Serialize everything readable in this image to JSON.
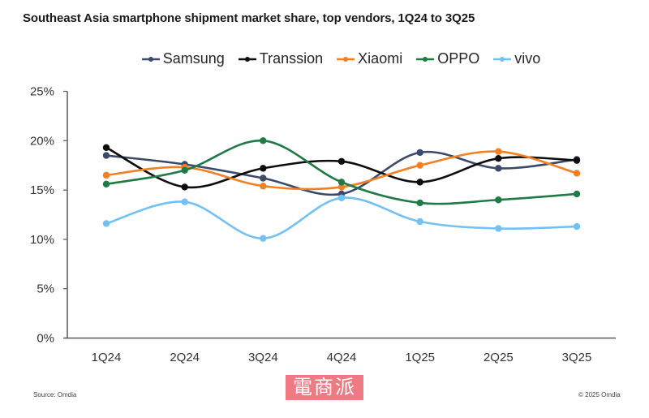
{
  "chart_data": {
    "type": "line",
    "title": "Southeast Asia smartphone shipment market share, top vendors, 1Q24 to 3Q25",
    "xlabel": "",
    "ylabel": "",
    "categories": [
      "1Q24",
      "2Q24",
      "3Q24",
      "4Q24",
      "1Q25",
      "2Q25",
      "3Q25"
    ],
    "ylim": [
      0,
      25
    ],
    "yticks": [
      0,
      5,
      10,
      15,
      20,
      25
    ],
    "ytick_labels": [
      "0%",
      "5%",
      "10%",
      "15%",
      "20%",
      "25%"
    ],
    "grid": false,
    "smooth": true,
    "legend_position": "top",
    "series": [
      {
        "name": "Samsung",
        "color": "#3b4a6b",
        "values": [
          18.5,
          17.6,
          16.2,
          14.6,
          18.8,
          17.2,
          18.1
        ]
      },
      {
        "name": "Transsion",
        "color": "#0d0d0d",
        "values": [
          19.3,
          15.3,
          17.2,
          17.9,
          15.8,
          18.2,
          18.0
        ]
      },
      {
        "name": "Xiaomi",
        "color": "#f28022",
        "values": [
          16.5,
          17.3,
          15.4,
          15.3,
          17.5,
          18.9,
          16.7
        ]
      },
      {
        "name": "OPPO",
        "color": "#1e7b45",
        "values": [
          15.6,
          17.0,
          20.0,
          15.8,
          13.7,
          14.0,
          14.6
        ]
      },
      {
        "name": "vivo",
        "color": "#72c1f2",
        "values": [
          11.6,
          13.8,
          10.1,
          14.2,
          11.8,
          11.1,
          11.3
        ]
      }
    ]
  },
  "footer": {
    "source": "Source: Omdia",
    "copyright": "© 2025 Omdia"
  },
  "watermark": {
    "text": "電商派"
  }
}
